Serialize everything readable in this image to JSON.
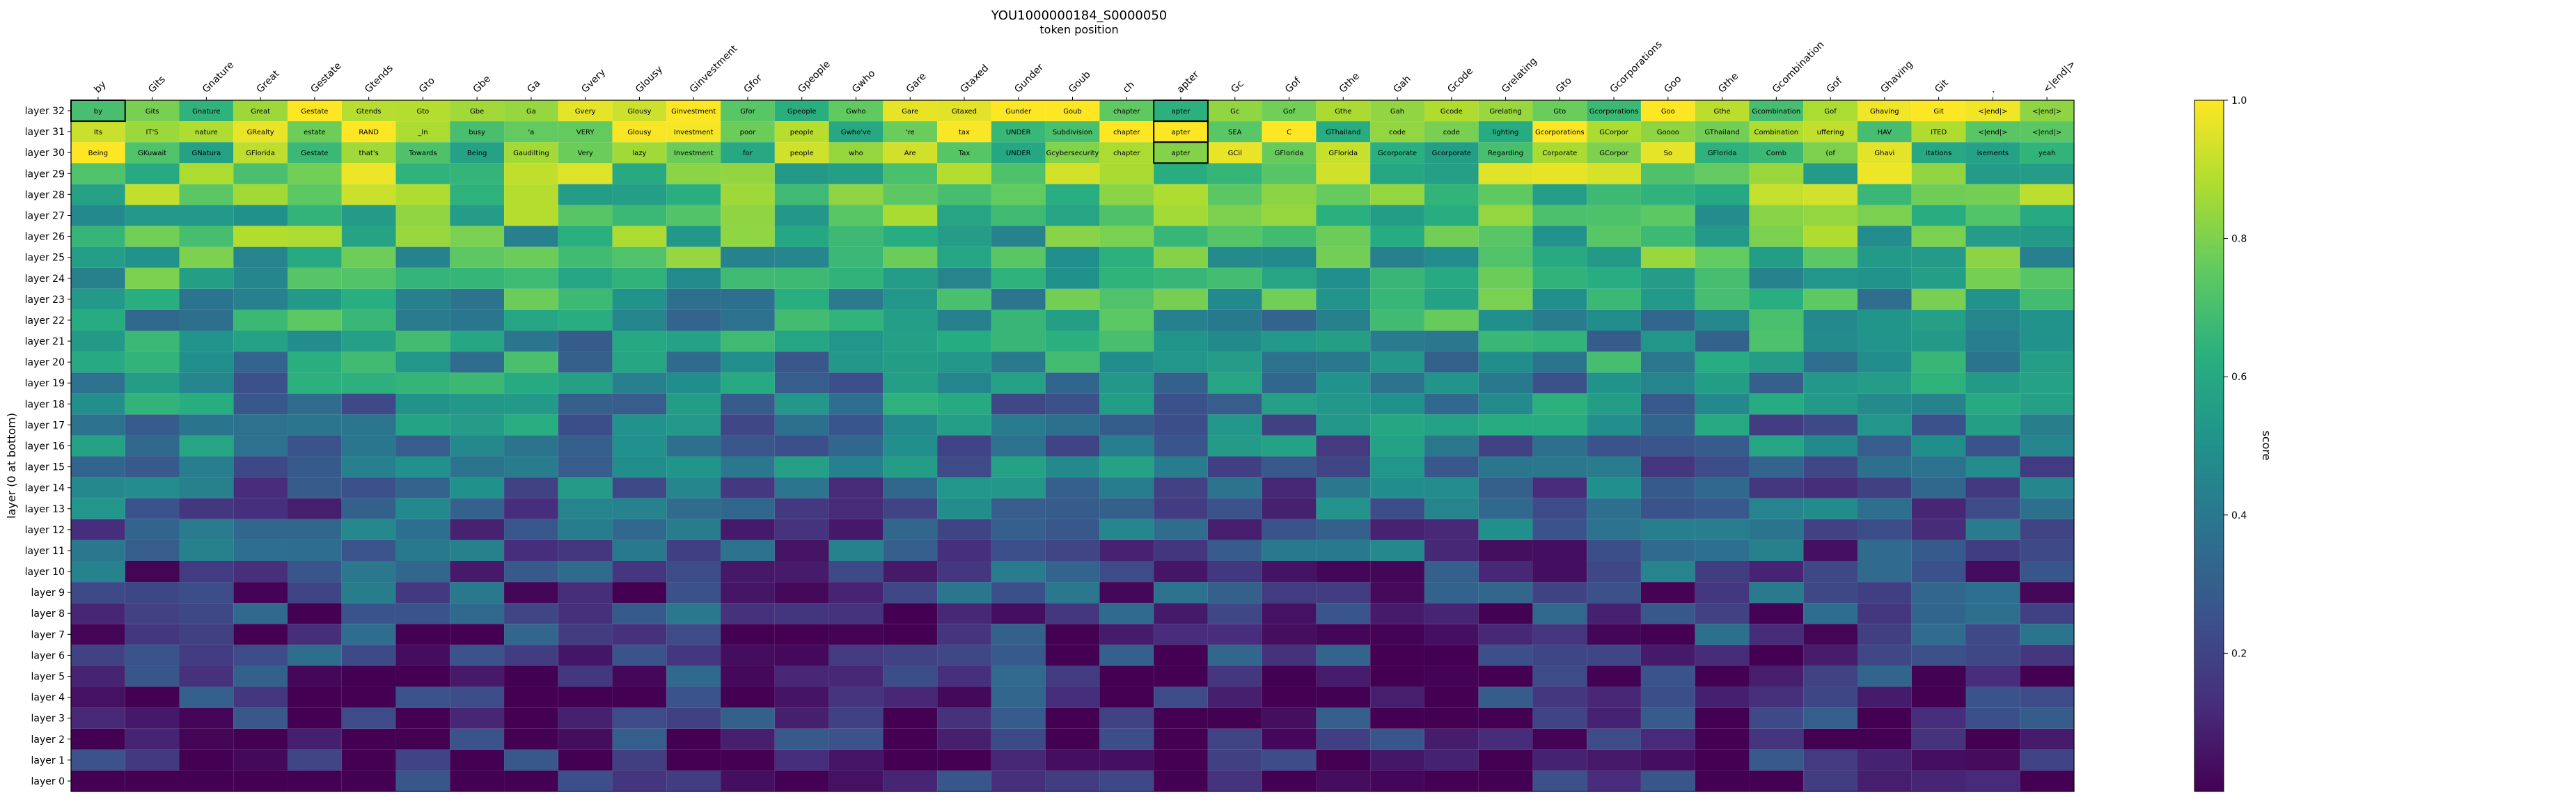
{
  "chart_data": {
    "type": "heatmap",
    "title": "YOU1000000184_S0000050",
    "xlabel": "token position",
    "ylabel": "layer (0 at bottom)",
    "colorbar_label": "score",
    "colorbar_ticks": [
      "0.2",
      "0.4",
      "0.6",
      "0.8",
      "1.0"
    ],
    "colormap": "viridis",
    "vmin": 0.0,
    "vmax": 1.0,
    "x_tokens": [
      "by",
      "Gits",
      "Gnature",
      "Great",
      "Gestate",
      "Gtends",
      "Gto",
      "Gbe",
      "Ga",
      "Gvery",
      "Glousy",
      "Ginvestment",
      "Gfor",
      "Gpeople",
      "Gwho",
      "Gare",
      "Gtaxed",
      "Gunder",
      "Goub",
      "ch",
      "apter",
      "Gc",
      "Gof",
      "Gthe",
      "Gah",
      "Gcode",
      "Grelating",
      "Gto",
      "Gcorporations",
      "Goo",
      "Gthe",
      "Gcombination",
      "Gof",
      "Ghaving",
      "Git",
      ".",
      "<|end|>"
    ],
    "layer_labels": [
      "layer 0",
      "layer 1",
      "layer 2",
      "layer 3",
      "layer 4",
      "layer 5",
      "layer 6",
      "layer 7",
      "layer 8",
      "layer 9",
      "layer 10",
      "layer 11",
      "layer 12",
      "layer 13",
      "layer 14",
      "layer 15",
      "layer 16",
      "layer 17",
      "layer 18",
      "layer 19",
      "layer 20",
      "layer 21",
      "layer 22",
      "layer 23",
      "layer 24",
      "layer 25",
      "layer 26",
      "layer 27",
      "layer 28",
      "layer 29",
      "layer 30",
      "layer 31",
      "layer 32"
    ],
    "cells_top_rows": [
      {
        "layer": "layer 32",
        "tokens": [
          "by",
          "Gits",
          "Gnature",
          "Great",
          "Gestate",
          "Gtends",
          "Gto",
          "Gbe",
          "Ga",
          "Gvery",
          "Glousy",
          "Ginvestment",
          "Gfor",
          "Gpeople",
          "Gwho",
          "Gare",
          "Gtaxed",
          "Gunder",
          "Goub",
          "chapter",
          "apter",
          "Gc",
          "Gof",
          "Gthe",
          "Gah",
          "Gcode",
          "Grelating",
          "Gto",
          "Gcorporations",
          "Goo",
          "Gthe",
          "Gcombination",
          "Gof",
          "Ghaving",
          "Git",
          "<|end|>",
          "<|end|>"
        ]
      },
      {
        "layer": "layer 31",
        "tokens": [
          "Its",
          "IT'S",
          "nature",
          "GRealty",
          "estate",
          "RAND",
          "_In",
          "busy",
          "'a",
          "VERY",
          "Glousy",
          "Investment",
          "poor",
          "people",
          "Gwho've",
          "'re",
          "tax",
          "UNDER",
          "Subdivision",
          "chapter",
          "apter",
          "SEA",
          "C",
          "GThailand",
          "code",
          "code",
          "lighting",
          "Gcorporations",
          "GCorpor",
          "Goooo",
          "GThailand",
          "Combination",
          "uffering",
          "HAV",
          "ITED",
          "<|end|>",
          "<|end|>"
        ]
      },
      {
        "layer": "layer 30",
        "tokens": [
          "Being",
          "GKuwait",
          "GNatura",
          "GFlorida",
          "Gestate",
          "that's",
          "Towards",
          "Being",
          "Gaudilting",
          "Very",
          "lazy",
          "Investment",
          "for",
          "people",
          "who",
          "Are",
          "Tax",
          "UNDER",
          "Gcybersecurity",
          "chapter",
          "apter",
          "GCil",
          "GFlorida",
          "GFlorida",
          "Gcorporate",
          "Gcorporate",
          "Regarding",
          "Corporate",
          "GCorpor",
          "So",
          "GFlorida",
          "Comb",
          "(of",
          "Ghavi",
          "itations",
          "isements",
          "yeah"
        ]
      }
    ]
  }
}
